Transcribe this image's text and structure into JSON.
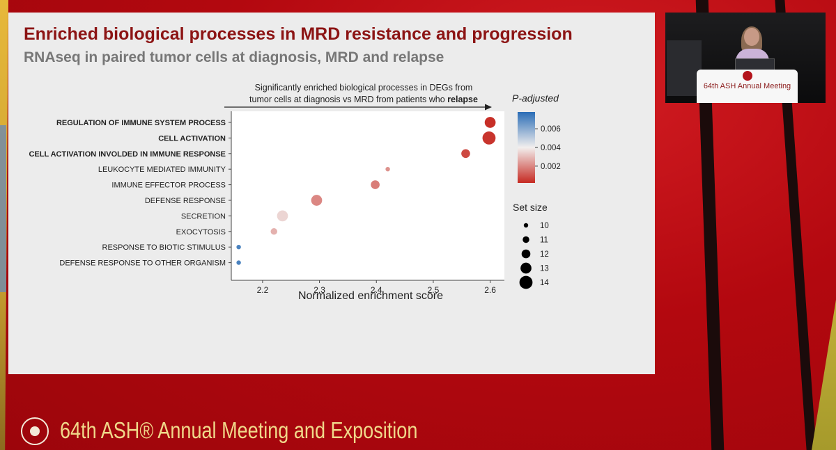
{
  "slide": {
    "title": "Enriched biological processes in MRD resistance and progression",
    "subtitle": "RNAseq in paired tumor cells at diagnosis, MRD and relapse"
  },
  "chart_data": {
    "type": "scatter",
    "header_line1": "Significantly enriched biological processes in DEGs from",
    "header_line2_prefix": "tumor cells at diagnosis vs MRD from patients who ",
    "header_line2_bold": "relapse",
    "xlabel": "Normalized enrichment score",
    "xlim": [
      2.145,
      2.625
    ],
    "xticks": [
      2.2,
      2.3,
      2.4,
      2.5,
      2.6
    ],
    "categories": [
      {
        "label": "REGULATION OF IMMUNE SYSTEM PROCESS",
        "bold": true
      },
      {
        "label": "CELL ACTIVATION",
        "bold": true
      },
      {
        "label": "CELL ACTIVATION INVOLDED IN IMMUNE RESPONSE",
        "bold": true
      },
      {
        "label": "LEUKOCYTE MEDIATED IMMUNITY",
        "bold": false
      },
      {
        "label": "IMMUNE EFFECTOR PROCESS",
        "bold": false
      },
      {
        "label": "DEFENSE RESPONSE",
        "bold": false
      },
      {
        "label": "SECRETION",
        "bold": false
      },
      {
        "label": "EXOCYTOSIS",
        "bold": false
      },
      {
        "label": "RESPONSE TO BIOTIC STIMULUS",
        "bold": false
      },
      {
        "label": "DEFENSE RESPONSE TO OTHER ORGANISM",
        "bold": false
      }
    ],
    "points": [
      {
        "x": 2.6,
        "p_adjusted": 0.0003,
        "set_size": 13
      },
      {
        "x": 2.598,
        "p_adjusted": 0.0004,
        "set_size": 14
      },
      {
        "x": 2.557,
        "p_adjusted": 0.0008,
        "set_size": 12
      },
      {
        "x": 2.42,
        "p_adjusted": 0.0022,
        "set_size": 10
      },
      {
        "x": 2.398,
        "p_adjusted": 0.0018,
        "set_size": 12
      },
      {
        "x": 2.295,
        "p_adjusted": 0.002,
        "set_size": 13
      },
      {
        "x": 2.235,
        "p_adjusted": 0.0035,
        "set_size": 13
      },
      {
        "x": 2.22,
        "p_adjusted": 0.0028,
        "set_size": 11
      },
      {
        "x": 2.158,
        "p_adjusted": 0.0072,
        "set_size": 10
      },
      {
        "x": 2.158,
        "p_adjusted": 0.0072,
        "set_size": 10
      }
    ],
    "color_legend": {
      "title": "P-adjusted",
      "ticks": [
        0.006,
        0.004,
        0.002
      ],
      "tick_labels": [
        "0.006",
        "0.004",
        "0.002"
      ],
      "range": [
        0.0002,
        0.0078
      ],
      "low_color": "#c62a22",
      "mid_color": "#f2efee",
      "high_color": "#2a6db6"
    },
    "size_legend": {
      "title": "Set size",
      "values": [
        10,
        11,
        12,
        13,
        14
      ]
    }
  },
  "video": {
    "podium_text": "64th ASH Annual Meeting"
  },
  "footer": {
    "text": "64th ASH® Annual Meeting and Exposition"
  },
  "colors": {
    "brand_red": "#c8111a",
    "title_red": "#8c1414",
    "footer_gold": "#f0d88a"
  }
}
